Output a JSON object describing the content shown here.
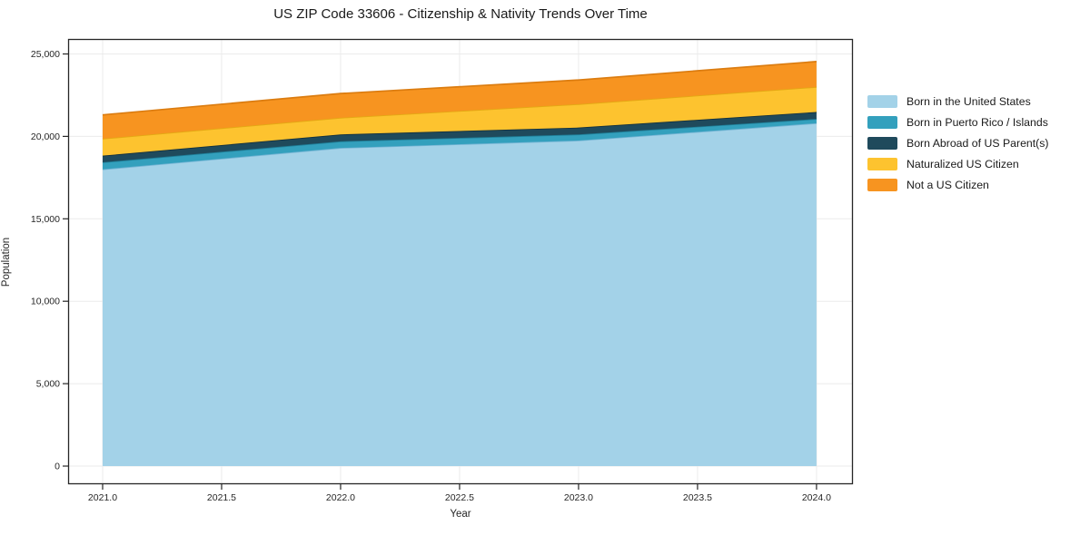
{
  "page": {
    "title": "US ZIP Code 33606 - Citizenship & Nativity Trends Over Time"
  },
  "chart_data": {
    "type": "area",
    "stacked": true,
    "title": "US ZIP Code 33606 - Citizenship & Nativity Trends Over Time",
    "xlabel": "Year",
    "ylabel": "Population",
    "grid": true,
    "legend_position": "right-outside",
    "x": [
      2021,
      2022,
      2023,
      2024
    ],
    "series": [
      {
        "name": "Born in the United States",
        "color": "#a3d2e8",
        "edge": "#74b4d4",
        "values": [
          18000,
          19300,
          19750,
          20800
        ]
      },
      {
        "name": "Born in Puerto Rico / Islands",
        "color": "#33a0bd",
        "edge": "#1f7e97",
        "values": [
          430,
          400,
          370,
          260
        ]
      },
      {
        "name": "Born Abroad of US Parent(s)",
        "color": "#1f4a5c",
        "edge": "#13303d",
        "values": [
          400,
          420,
          415,
          420
        ]
      },
      {
        "name": "Naturalized US Citizen",
        "color": "#fdc32f",
        "edge": "#e3a913",
        "values": [
          1030,
          1010,
          1420,
          1520
        ]
      },
      {
        "name": "Not a US Citizen",
        "color": "#f79420",
        "edge": "#db7c10",
        "values": [
          1445,
          1470,
          1465,
          1540
        ]
      }
    ],
    "stack_totals": [
      21305,
      22600,
      23420,
      24540
    ],
    "xlim": [
      2020.855,
      2024.153
    ],
    "ylim": [
      -1100,
      25908
    ],
    "x_ticks": {
      "values": [
        2021.0,
        2021.5,
        2022.0,
        2022.5,
        2023.0,
        2023.5,
        2024.0
      ],
      "labels": [
        "2021.0",
        "2021.5",
        "2022.0",
        "2022.5",
        "2023.0",
        "2023.5",
        "2024.0"
      ]
    },
    "y_ticks": {
      "values": [
        0,
        5000,
        10000,
        15000,
        20000,
        25000
      ],
      "labels": [
        "0",
        "5,000",
        "10,000",
        "15,000",
        "20,000",
        "25,000"
      ]
    }
  }
}
